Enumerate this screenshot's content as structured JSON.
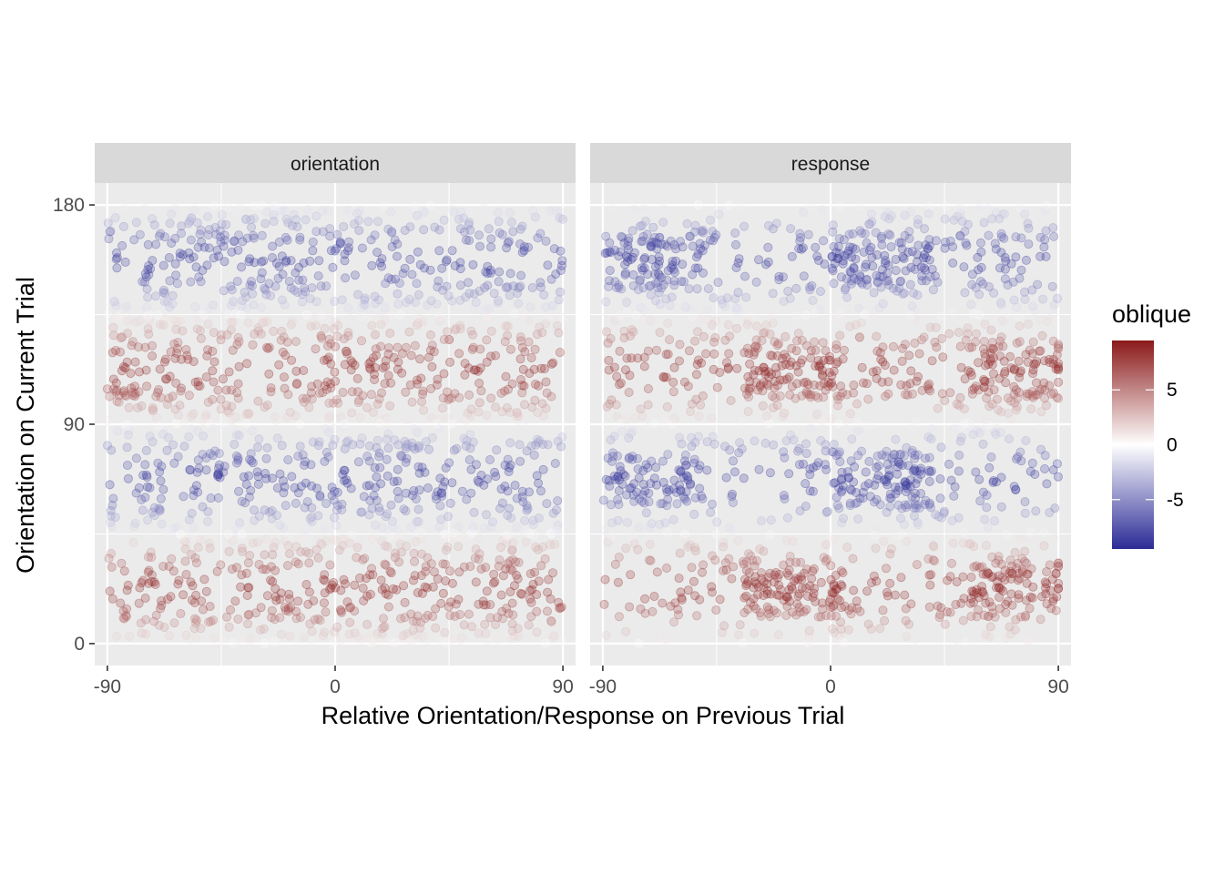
{
  "chart_data": {
    "type": "scatter",
    "facets": [
      {
        "label": "orientation",
        "pattern": "uniform"
      },
      {
        "label": "response",
        "pattern": "clustered"
      }
    ],
    "xlabel": "Relative Orientation/Response on Previous Trial",
    "ylabel": "Orientation on Current Trial",
    "x_ticks": [
      "-90",
      "0",
      "90"
    ],
    "y_ticks": [
      "0",
      "90",
      "180"
    ],
    "xlim": [
      -95,
      95
    ],
    "ylim": [
      -9,
      189
    ],
    "x_range": [
      -90,
      90
    ],
    "y_range": [
      0,
      180
    ],
    "grid": true,
    "point_alpha": 0.25,
    "color_variable": "oblique",
    "legend": {
      "title": "oblique",
      "position": "right",
      "ticks": [
        "5",
        "0",
        "-5"
      ],
      "tick_values": [
        5,
        0,
        -5
      ],
      "range": [
        -9.5,
        9.5
      ]
    },
    "colors": {
      "high": "#8B1A1A",
      "mid": "#FFFFFF",
      "low": "#2B2B96",
      "panel_bg": "#EBEBEB",
      "strip_bg": "#D9D9D9",
      "grid": "#FFFFFF"
    }
  }
}
